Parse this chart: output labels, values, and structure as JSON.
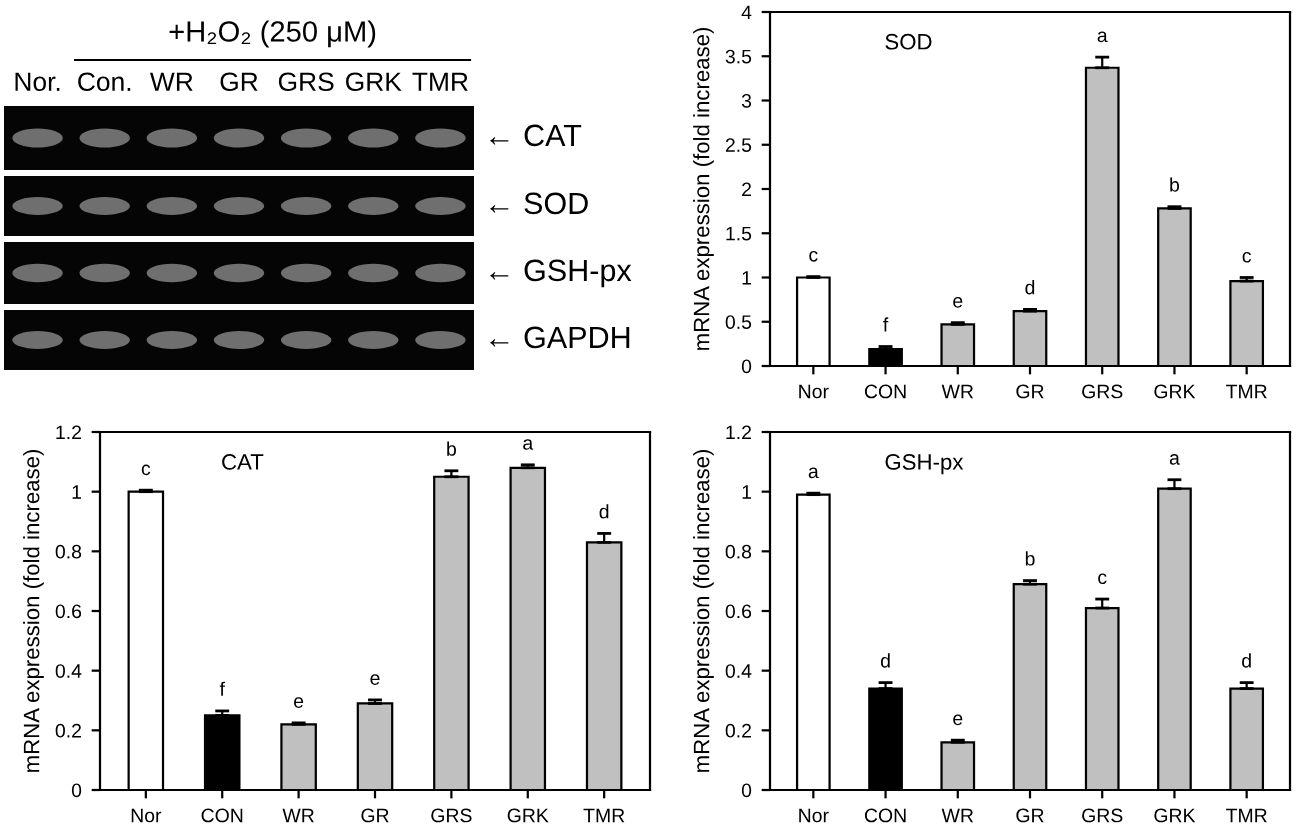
{
  "chart_data": [
    {
      "type": "other",
      "title": "+H₂O₂ (250 μM)",
      "categories": [
        "Nor.",
        "Con.",
        "WR",
        "GR",
        "GRS",
        "GRK",
        "TMR"
      ],
      "annotations": [
        "← CAT",
        "← SOD",
        "← GSH-px",
        "← GAPDH"
      ]
    },
    {
      "type": "bar",
      "title": "SOD",
      "ylabel": "mRNA expression (fold increase)",
      "categories": [
        "Nor",
        "CON",
        "WR",
        "GR",
        "GRS",
        "GRK",
        "TMR"
      ],
      "values": [
        1.0,
        0.19,
        0.47,
        0.62,
        3.37,
        1.78,
        0.96
      ],
      "errors": [
        [
          1.0,
          1.01
        ],
        [
          0.19,
          0.22
        ],
        [
          0.47,
          0.49
        ],
        [
          0.62,
          0.64
        ],
        [
          3.37,
          3.49
        ],
        [
          1.78,
          1.8
        ],
        [
          0.96,
          1.0
        ]
      ],
      "colors": [
        "#ffffff",
        "#000000",
        "#c0c0c0",
        "#c0c0c0",
        "#c0c0c0",
        "#c0c0c0",
        "#c0c0c0"
      ],
      "ylim": [
        0,
        4
      ],
      "yticks": [
        0,
        0.5,
        1,
        1.5,
        2,
        2.5,
        3,
        3.5,
        4
      ],
      "grid": false,
      "annotations": [
        {
          "text": "c",
          "x": "Nor",
          "y": 1.01
        },
        {
          "text": "f",
          "x": "CON",
          "y": 0.22
        },
        {
          "text": "e",
          "x": "WR",
          "y": 0.49
        },
        {
          "text": "d",
          "x": "GR",
          "y": 0.64
        },
        {
          "text": "a",
          "x": "GRS",
          "y": 3.49
        },
        {
          "text": "b",
          "x": "GRK",
          "y": 1.8
        },
        {
          "text": "c",
          "x": "TMR",
          "y": 1.0
        }
      ]
    },
    {
      "type": "bar",
      "title": "CAT",
      "ylabel": "mRNA expression (fold increase)",
      "categories": [
        "Nor",
        "CON",
        "WR",
        "GR",
        "GRS",
        "GRK",
        "TMR"
      ],
      "values": [
        1.0,
        0.25,
        0.22,
        0.29,
        1.05,
        1.08,
        0.83
      ],
      "errors": [
        [
          1.0,
          1.005
        ],
        [
          0.25,
          0.265
        ],
        [
          0.22,
          0.225
        ],
        [
          0.29,
          0.302
        ],
        [
          1.05,
          1.07
        ],
        [
          1.08,
          1.09
        ],
        [
          0.83,
          0.86
        ]
      ],
      "colors": [
        "#ffffff",
        "#000000",
        "#c0c0c0",
        "#c0c0c0",
        "#c0c0c0",
        "#c0c0c0",
        "#c0c0c0"
      ],
      "ylim": [
        0,
        1.2
      ],
      "yticks": [
        0,
        0.2,
        0.4,
        0.6,
        0.8,
        1,
        1.2
      ],
      "grid": false,
      "annotations": [
        {
          "text": "c",
          "x": "Nor",
          "y": 1.005
        },
        {
          "text": "f",
          "x": "CON",
          "y": 0.265
        },
        {
          "text": "e",
          "x": "WR",
          "y": 0.225
        },
        {
          "text": "e",
          "x": "GR",
          "y": 0.302
        },
        {
          "text": "b",
          "x": "GRS",
          "y": 1.07
        },
        {
          "text": "a",
          "x": "GRK",
          "y": 1.09
        },
        {
          "text": "d",
          "x": "TMR",
          "y": 0.86
        }
      ]
    },
    {
      "type": "bar",
      "title": "GSH-px",
      "ylabel": "mRNA expression (fold increase)",
      "categories": [
        "Nor",
        "CON",
        "WR",
        "GR",
        "GRS",
        "GRK",
        "TMR"
      ],
      "values": [
        0.99,
        0.34,
        0.16,
        0.69,
        0.61,
        1.01,
        0.34
      ],
      "errors": [
        [
          0.99,
          0.995
        ],
        [
          0.34,
          0.36
        ],
        [
          0.16,
          0.167
        ],
        [
          0.69,
          0.702
        ],
        [
          0.61,
          0.64
        ],
        [
          1.01,
          1.04
        ],
        [
          0.34,
          0.36
        ]
      ],
      "colors": [
        "#ffffff",
        "#000000",
        "#c0c0c0",
        "#c0c0c0",
        "#c0c0c0",
        "#c0c0c0",
        "#c0c0c0"
      ],
      "ylim": [
        0,
        1.2
      ],
      "yticks": [
        0,
        0.2,
        0.4,
        0.6,
        0.8,
        1,
        1.2
      ],
      "grid": false,
      "annotations": [
        {
          "text": "a",
          "x": "Nor",
          "y": 0.995
        },
        {
          "text": "d",
          "x": "CON",
          "y": 0.36
        },
        {
          "text": "e",
          "x": "WR",
          "y": 0.167
        },
        {
          "text": "b",
          "x": "GR",
          "y": 0.702
        },
        {
          "text": "c",
          "x": "GRS",
          "y": 0.64
        },
        {
          "text": "a",
          "x": "GRK",
          "y": 1.04
        },
        {
          "text": "d",
          "x": "TMR",
          "y": 0.36
        }
      ]
    }
  ]
}
